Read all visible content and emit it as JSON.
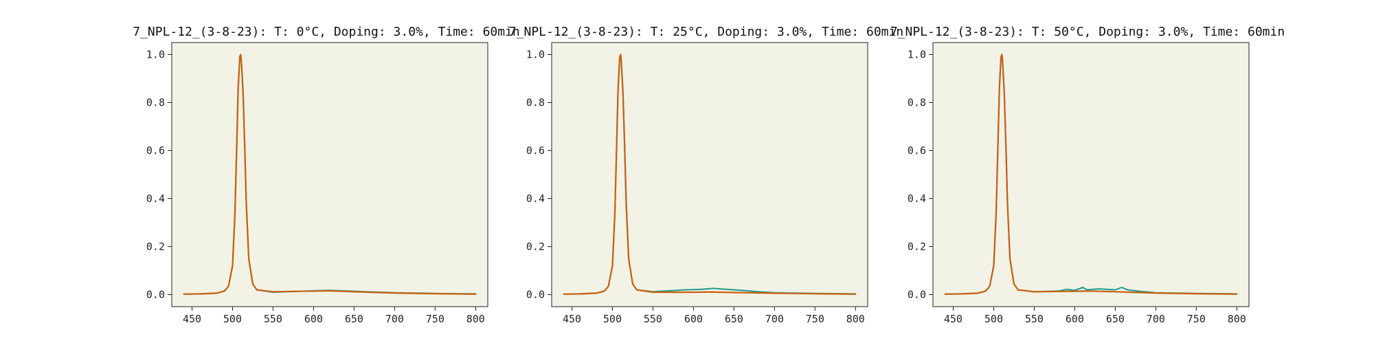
{
  "figure": {
    "background": "#ffffff",
    "plot_background": "#f3f2e6",
    "series_colors": [
      "#1a9a8a",
      "#c8600e"
    ]
  },
  "chart_data": [
    {
      "type": "line",
      "title": "7_NPL-12_(3-8-23): T: 0°C, Doping: 3.0%, Time: 60min",
      "xlabel": "",
      "ylabel": "",
      "xlim": [
        425,
        815
      ],
      "ylim": [
        -0.05,
        1.05
      ],
      "xticks": [
        450,
        500,
        550,
        600,
        650,
        700,
        750,
        800
      ],
      "yticks": [
        0.0,
        0.2,
        0.4,
        0.6,
        0.8,
        1.0
      ],
      "grid": false,
      "series": [
        {
          "color": "#1a9a8a",
          "x": [
            440,
            460,
            480,
            490,
            495,
            500,
            503,
            505,
            507,
            509,
            510,
            511,
            513,
            515,
            517,
            520,
            525,
            530,
            550,
            600,
            620,
            650,
            700,
            750,
            800
          ],
          "y": [
            0.002,
            0.003,
            0.006,
            0.015,
            0.035,
            0.12,
            0.34,
            0.6,
            0.86,
            0.99,
            1.0,
            0.97,
            0.84,
            0.62,
            0.38,
            0.15,
            0.045,
            0.02,
            0.01,
            0.016,
            0.018,
            0.014,
            0.008,
            0.005,
            0.003
          ]
        },
        {
          "color": "#c8600e",
          "x": [
            440,
            460,
            480,
            490,
            495,
            500,
            503,
            505,
            507,
            509,
            510,
            511,
            513,
            515,
            517,
            520,
            525,
            530,
            550,
            600,
            620,
            650,
            700,
            750,
            800
          ],
          "y": [
            0.002,
            0.003,
            0.006,
            0.015,
            0.035,
            0.12,
            0.34,
            0.6,
            0.86,
            0.99,
            1.0,
            0.97,
            0.84,
            0.62,
            0.38,
            0.15,
            0.045,
            0.02,
            0.012,
            0.015,
            0.016,
            0.012,
            0.007,
            0.004,
            0.002
          ]
        }
      ]
    },
    {
      "type": "line",
      "title": "7_NPL-12_(3-8-23): T: 25°C, Doping: 3.0%, Time: 60min",
      "xlabel": "",
      "ylabel": "",
      "xlim": [
        425,
        815
      ],
      "ylim": [
        -0.05,
        1.05
      ],
      "xticks": [
        450,
        500,
        550,
        600,
        650,
        700,
        750,
        800
      ],
      "yticks": [
        0.0,
        0.2,
        0.4,
        0.6,
        0.8,
        1.0
      ],
      "grid": false,
      "series": [
        {
          "color": "#1a9a8a",
          "x": [
            440,
            460,
            480,
            490,
            495,
            500,
            503,
            505,
            507,
            509,
            510,
            511,
            513,
            515,
            517,
            520,
            525,
            530,
            550,
            570,
            590,
            610,
            625,
            640,
            660,
            680,
            700,
            750,
            800
          ],
          "y": [
            0.002,
            0.003,
            0.006,
            0.015,
            0.035,
            0.12,
            0.34,
            0.6,
            0.86,
            0.99,
            1.0,
            0.97,
            0.84,
            0.62,
            0.38,
            0.15,
            0.045,
            0.02,
            0.012,
            0.016,
            0.02,
            0.022,
            0.026,
            0.022,
            0.018,
            0.012,
            0.008,
            0.005,
            0.003
          ]
        },
        {
          "color": "#c8600e",
          "x": [
            440,
            460,
            480,
            490,
            495,
            500,
            503,
            505,
            507,
            509,
            510,
            511,
            513,
            515,
            517,
            520,
            525,
            530,
            550,
            600,
            620,
            650,
            700,
            750,
            800
          ],
          "y": [
            0.002,
            0.003,
            0.006,
            0.015,
            0.035,
            0.12,
            0.34,
            0.6,
            0.86,
            0.99,
            1.0,
            0.97,
            0.84,
            0.62,
            0.38,
            0.15,
            0.045,
            0.02,
            0.01,
            0.01,
            0.011,
            0.009,
            0.006,
            0.004,
            0.002
          ]
        }
      ]
    },
    {
      "type": "line",
      "title": "7_NPL-12_(3-8-23): T: 50°C, Doping: 3.0%, Time: 60min",
      "xlabel": "",
      "ylabel": "",
      "xlim": [
        425,
        815
      ],
      "ylim": [
        -0.05,
        1.05
      ],
      "xticks": [
        450,
        500,
        550,
        600,
        650,
        700,
        750,
        800
      ],
      "yticks": [
        0.0,
        0.2,
        0.4,
        0.6,
        0.8,
        1.0
      ],
      "grid": false,
      "series": [
        {
          "color": "#1a9a8a",
          "x": [
            440,
            460,
            480,
            490,
            495,
            500,
            503,
            505,
            507,
            509,
            510,
            511,
            513,
            515,
            517,
            520,
            525,
            530,
            550,
            580,
            590,
            600,
            610,
            615,
            630,
            650,
            658,
            665,
            680,
            700,
            750,
            800
          ],
          "y": [
            0.002,
            0.003,
            0.006,
            0.015,
            0.035,
            0.12,
            0.34,
            0.6,
            0.86,
            0.99,
            1.0,
            0.97,
            0.84,
            0.62,
            0.38,
            0.15,
            0.045,
            0.02,
            0.012,
            0.015,
            0.022,
            0.018,
            0.03,
            0.02,
            0.024,
            0.02,
            0.03,
            0.02,
            0.014,
            0.008,
            0.005,
            0.003
          ]
        },
        {
          "color": "#c8600e",
          "x": [
            440,
            460,
            480,
            490,
            495,
            500,
            503,
            505,
            507,
            509,
            510,
            511,
            513,
            515,
            517,
            520,
            525,
            530,
            550,
            600,
            620,
            650,
            700,
            750,
            800
          ],
          "y": [
            0.002,
            0.003,
            0.006,
            0.015,
            0.035,
            0.12,
            0.34,
            0.6,
            0.86,
            0.99,
            1.0,
            0.97,
            0.84,
            0.62,
            0.38,
            0.15,
            0.045,
            0.02,
            0.012,
            0.014,
            0.015,
            0.012,
            0.007,
            0.004,
            0.002
          ]
        }
      ]
    }
  ]
}
